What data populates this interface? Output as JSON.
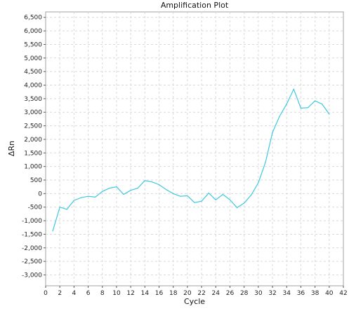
{
  "chart_data": {
    "type": "line",
    "title": "Amplification Plot",
    "xlabel": "Cycle",
    "ylabel": "ΔRn",
    "xlim": [
      0,
      42
    ],
    "ylim": [
      -3400,
      6700
    ],
    "x_ticks": [
      0,
      2,
      4,
      6,
      8,
      10,
      12,
      14,
      16,
      18,
      20,
      22,
      24,
      26,
      28,
      30,
      32,
      34,
      36,
      38,
      40,
      42
    ],
    "y_ticks": [
      -3000,
      -2500,
      -2000,
      -1500,
      -1000,
      -500,
      0,
      500,
      1000,
      1500,
      2000,
      2500,
      3000,
      3500,
      4000,
      4500,
      5000,
      5500,
      6000,
      6500
    ],
    "y_tick_labels": [
      "-3,000",
      "-2,500",
      "-2,000",
      "-1,500",
      "-1,000",
      "-500",
      "0",
      "500",
      "1,000",
      "1,500",
      "2,000",
      "2,500",
      "3,000",
      "3,500",
      "4,000",
      "4,500",
      "5,000",
      "5,500",
      "6,000",
      "6,500"
    ],
    "grid": true,
    "colors": {
      "series": "#3ec8e0"
    },
    "series": [
      {
        "x": [
          1,
          2,
          3,
          4,
          5,
          6,
          7,
          8,
          9,
          10,
          11,
          12,
          13,
          14,
          15,
          16,
          17,
          18,
          19,
          20,
          21,
          22,
          23,
          24,
          25,
          26,
          27,
          28,
          29,
          30,
          31,
          32,
          33,
          34,
          35,
          36,
          37,
          38,
          39,
          40
        ],
        "values": [
          -1380,
          -500,
          -580,
          -250,
          -150,
          -100,
          -130,
          80,
          200,
          250,
          -30,
          120,
          200,
          480,
          430,
          330,
          150,
          0,
          -100,
          -80,
          -330,
          -280,
          20,
          -230,
          -30,
          -230,
          -520,
          -350,
          -50,
          400,
          1150,
          2250,
          2850,
          3300,
          3850,
          3150,
          3170,
          3420,
          3300,
          2930
        ]
      }
    ]
  }
}
